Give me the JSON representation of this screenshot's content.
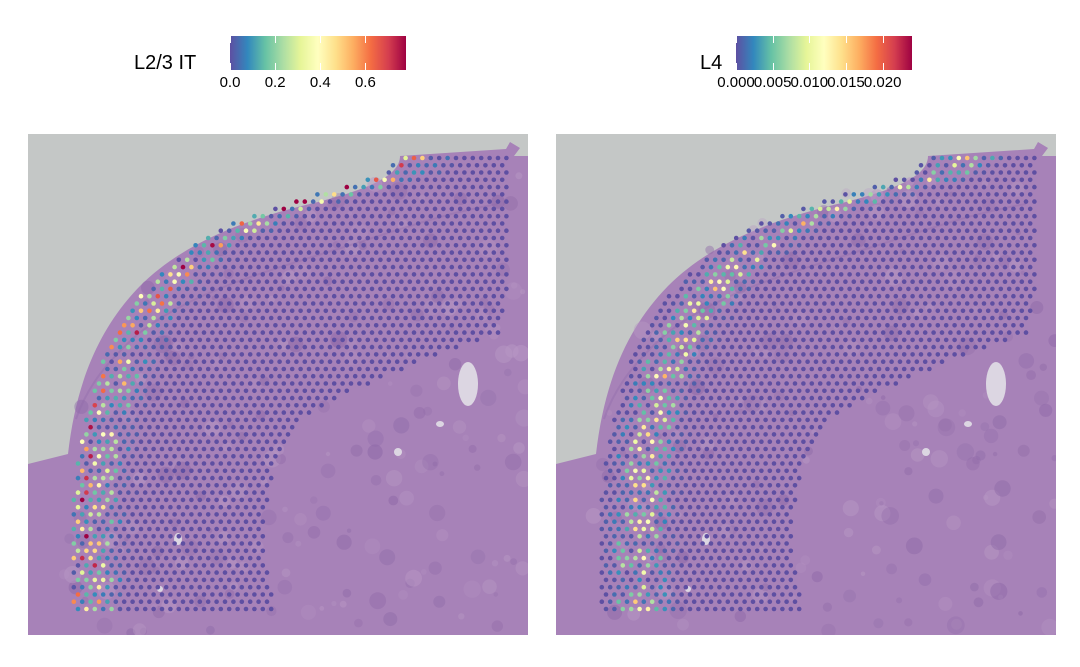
{
  "panels": [
    {
      "chart_data": {
        "type": "scatter",
        "title": "",
        "legend_title": "L2/3 IT",
        "legend_placement": "top-center",
        "colorscale": [
          "#5e4fa2",
          "#3288bd",
          "#66c2a5",
          "#abdda4",
          "#e6f598",
          "#ffffbf",
          "#fee08b",
          "#fdae61",
          "#f46d43",
          "#d53e4f",
          "#9e0142"
        ],
        "color_range": [
          0.0,
          0.78
        ],
        "ticks": [
          0.0,
          0.2,
          0.4,
          0.6
        ],
        "tick_labels": [
          "0.0",
          "0.2",
          "0.4",
          "0.6"
        ],
        "value_profile": {
          "band_center": 0.08,
          "band_width": 0.1,
          "peak": 0.7,
          "background": 0.0
        }
      }
    },
    {
      "chart_data": {
        "type": "scatter",
        "title": "",
        "legend_title": "L4",
        "legend_placement": "top-center",
        "colorscale": [
          "#5e4fa2",
          "#3288bd",
          "#66c2a5",
          "#abdda4",
          "#e6f598",
          "#ffffbf",
          "#fee08b",
          "#fdae61",
          "#f46d43",
          "#d53e4f",
          "#9e0142"
        ],
        "color_range": [
          0.0,
          0.024
        ],
        "ticks": [
          0.0,
          0.005,
          0.01,
          0.015,
          0.02
        ],
        "tick_labels": [
          "0.000",
          "0.005",
          "0.010",
          "0.015",
          "0.020"
        ],
        "value_profile": {
          "band_center": 0.2,
          "band_width": 0.09,
          "peak": 0.014,
          "background": 0.0
        }
      }
    }
  ],
  "colors": {
    "slide_background": "#c4c7c6",
    "tissue": "#a782b8",
    "tissue_dark": "#8f6aa8",
    "tissue_light": "#b898c4"
  }
}
